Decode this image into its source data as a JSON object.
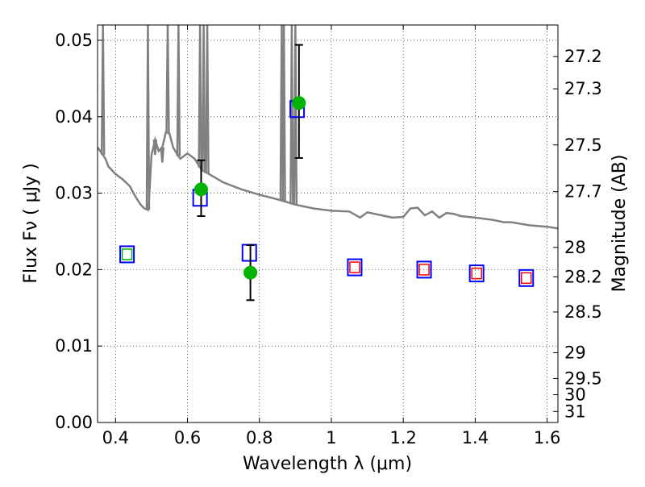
{
  "chart_data": {
    "type": "scatter",
    "xlabel": "Wavelength  λ (μm)",
    "ylabel": "Flux  Fν  ( μJy )",
    "y2label": "Magnitude (AB)",
    "xlim": [
      0.35,
      1.63
    ],
    "ylim": [
      0.0,
      0.052
    ],
    "grid": true,
    "x_ticks": [
      0.4,
      0.6,
      0.8,
      1.0,
      1.2,
      1.4,
      1.6
    ],
    "x_tick_labels": [
      "0.4",
      "0.6",
      "0.8",
      "1",
      "1.2",
      "1.4",
      "1.6"
    ],
    "y_ticks": [
      0.0,
      0.01,
      0.02,
      0.03,
      0.04,
      0.05
    ],
    "y_tick_labels": [
      "0.00",
      "0.01",
      "0.02",
      "0.03",
      "0.04",
      "0.05"
    ],
    "mag_ticks": [
      27.2,
      27.3,
      27.5,
      27.7,
      28,
      28.2,
      28.5,
      29,
      29.5,
      30,
      31
    ],
    "mag_tick_labels": [
      "27.2",
      "27.3",
      "27.5",
      "27.7",
      "28",
      "28.2",
      "28.5",
      "29",
      "29.5",
      "30",
      "31"
    ],
    "series": [
      {
        "kind": "sed-model-line",
        "color": "#808080",
        "points": [
          [
            0.35,
            0.036
          ],
          [
            0.365,
            0.035
          ],
          [
            0.372,
            0.0345
          ],
          [
            0.38,
            0.0335
          ],
          [
            0.4,
            0.0325
          ],
          [
            0.42,
            0.0318
          ],
          [
            0.44,
            0.0309
          ],
          [
            0.45,
            0.03
          ],
          [
            0.46,
            0.0292
          ],
          [
            0.47,
            0.0285
          ],
          [
            0.48,
            0.028
          ],
          [
            0.49,
            0.0278
          ],
          [
            0.493,
            0.029
          ],
          [
            0.5,
            0.035
          ],
          [
            0.51,
            0.037
          ],
          [
            0.52,
            0.0355
          ],
          [
            0.53,
            0.036
          ],
          [
            0.54,
            0.038
          ],
          [
            0.55,
            0.0378
          ],
          [
            0.56,
            0.036
          ],
          [
            0.57,
            0.0352
          ],
          [
            0.58,
            0.0345
          ],
          [
            0.6,
            0.0352
          ],
          [
            0.62,
            0.0345
          ],
          [
            0.64,
            0.033
          ],
          [
            0.66,
            0.0325
          ],
          [
            0.7,
            0.0314
          ],
          [
            0.75,
            0.0305
          ],
          [
            0.8,
            0.0298
          ],
          [
            0.85,
            0.0292
          ],
          [
            0.9,
            0.0285
          ],
          [
            0.95,
            0.028
          ],
          [
            1.0,
            0.0277
          ],
          [
            1.05,
            0.0276
          ],
          [
            1.08,
            0.0268
          ],
          [
            1.1,
            0.0275
          ],
          [
            1.15,
            0.027
          ],
          [
            1.17,
            0.0268
          ],
          [
            1.2,
            0.0269
          ],
          [
            1.22,
            0.028
          ],
          [
            1.24,
            0.0281
          ],
          [
            1.26,
            0.0271
          ],
          [
            1.28,
            0.0276
          ],
          [
            1.3,
            0.0268
          ],
          [
            1.32,
            0.0274
          ],
          [
            1.34,
            0.0273
          ],
          [
            1.36,
            0.027
          ],
          [
            1.4,
            0.0268
          ],
          [
            1.45,
            0.0265
          ],
          [
            1.48,
            0.0262
          ],
          [
            1.5,
            0.0262
          ],
          [
            1.55,
            0.0258
          ],
          [
            1.6,
            0.0256
          ],
          [
            1.63,
            0.0254
          ]
        ],
        "spikes": [
          [
            0.365,
            0.052
          ],
          [
            0.49,
            0.052
          ],
          [
            0.51,
            0.035
          ],
          [
            0.53,
            0.034
          ],
          [
            0.545,
            0.052
          ],
          [
            0.575,
            0.052
          ],
          [
            0.635,
            0.052
          ],
          [
            0.645,
            0.052
          ],
          [
            0.655,
            0.052
          ],
          [
            0.862,
            0.052
          ],
          [
            0.868,
            0.052
          ],
          [
            0.89,
            0.052
          ],
          [
            0.9,
            0.052
          ]
        ]
      },
      {
        "kind": "observed-flux",
        "color": "#00b300",
        "points": [
          {
            "x": 0.638,
            "y": 0.0305,
            "err_lo": 0.027,
            "err_hi": 0.0343
          },
          {
            "x": 0.775,
            "y": 0.0196,
            "err_lo": 0.016,
            "err_hi": 0.0232
          },
          {
            "x": 0.91,
            "y": 0.0418,
            "err_lo": 0.0346,
            "err_hi": 0.0494
          }
        ]
      },
      {
        "kind": "model-bandpass-flux",
        "color": "#0000ff",
        "points": [
          [
            0.432,
            0.022
          ],
          [
            0.635,
            0.0294
          ],
          [
            0.772,
            0.0222
          ],
          [
            0.905,
            0.041
          ],
          [
            1.065,
            0.0203
          ],
          [
            1.258,
            0.02
          ],
          [
            1.404,
            0.0195
          ],
          [
            1.542,
            0.0189
          ]
        ]
      },
      {
        "kind": "inner-small-squares",
        "points": [
          {
            "x": 0.432,
            "y": 0.022,
            "color": "#00b300"
          },
          {
            "x": 1.065,
            "y": 0.0203,
            "color": "#ff0000"
          },
          {
            "x": 1.258,
            "y": 0.02,
            "color": "#ff0000"
          },
          {
            "x": 1.404,
            "y": 0.0195,
            "color": "#ff0000"
          },
          {
            "x": 1.542,
            "y": 0.0189,
            "color": "#ff0000"
          }
        ]
      }
    ]
  }
}
